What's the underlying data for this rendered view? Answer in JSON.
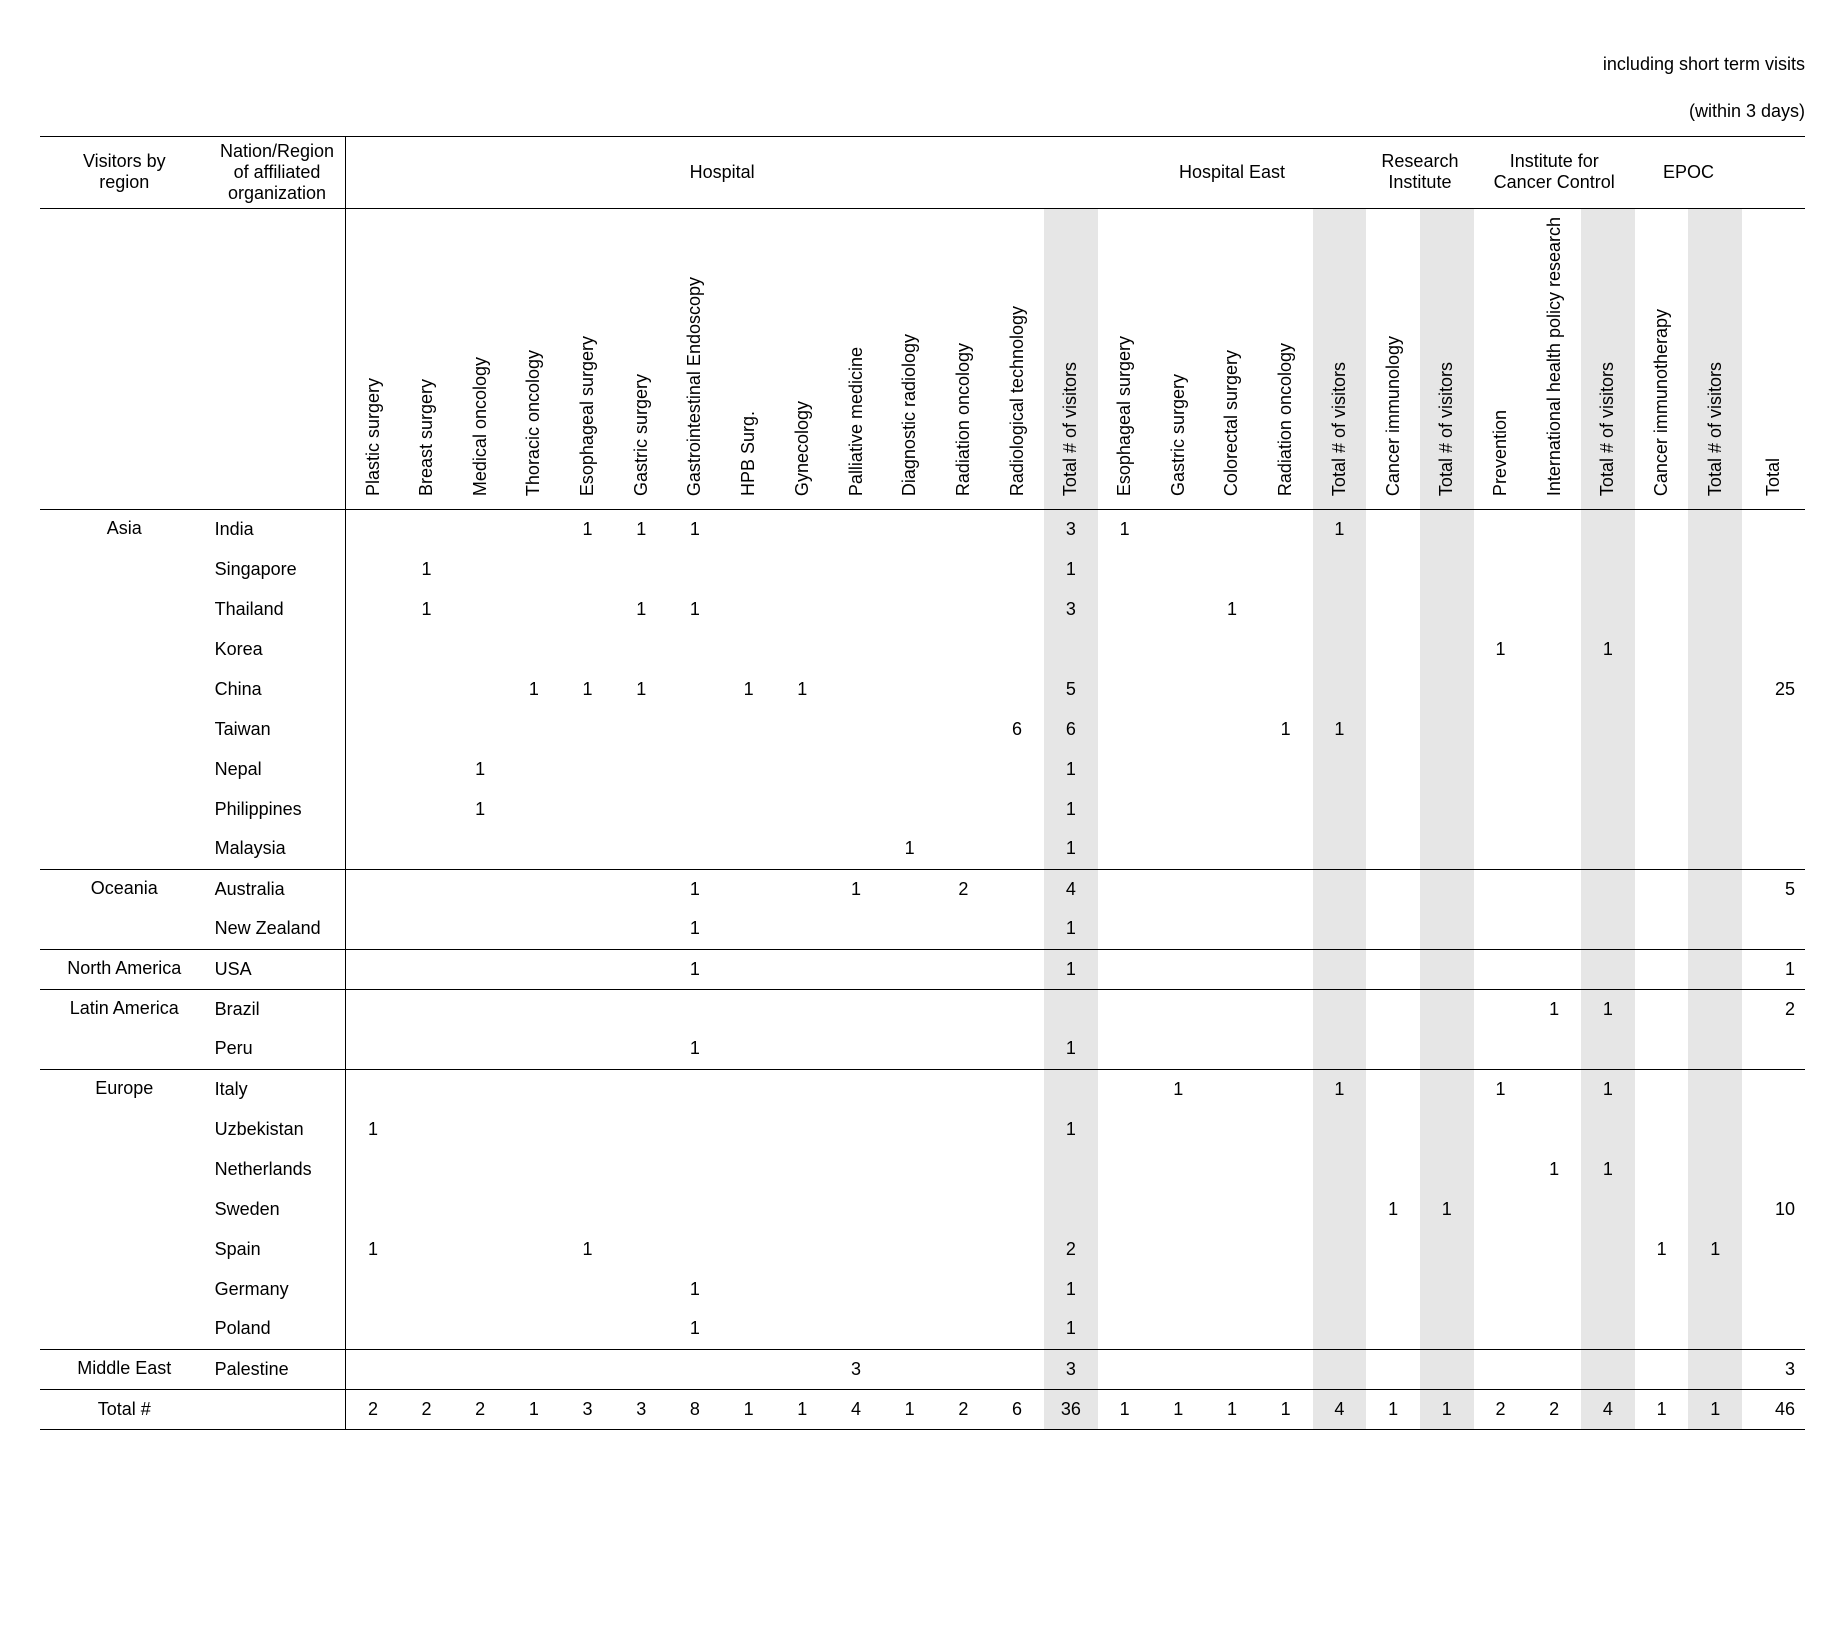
{
  "note_line1": "including short term visits",
  "note_line2": "(within 3 days)",
  "header": {
    "visitors_by_region": "Visitors by\nregion",
    "nation_region": "Nation/Region\nof affiliated\norganization",
    "hospital": "Hospital",
    "hospital_east": "Hospital East",
    "research_institute": "Research\nInstitute",
    "institute_cancer_control": "Institute for\nCancer Control",
    "epoc": "EPOC",
    "blank": ""
  },
  "columns": [
    "Plastic surgery",
    "Breast surgery",
    "Medical oncology",
    "Thoracic oncology",
    "Esophageal surgery",
    "Gastric surgery",
    "Gastrointestinal Endoscopy",
    "HPB Surg.",
    "Gynecology",
    "Palliative medicine",
    "Diagnostic radiology",
    "Radiation oncology",
    "Radiological technology",
    "Total # of visitors",
    "Esophageal surgery",
    "Gastric surgery",
    "Colorectal surgery",
    "Radiation oncology",
    "Total # of visitors",
    "Cancer immunology",
    "Total # of visitors",
    "Prevention",
    "International health policy research",
    "Total # of visitors",
    "Cancer immunotherapy",
    "Total # of visitors",
    "Total"
  ],
  "totals_label": "Total #",
  "regions": [
    {
      "name": "Asia",
      "rows": [
        {
          "country": "India",
          "v": [
            "",
            "",
            "",
            "",
            "1",
            "1",
            "1",
            "",
            "",
            "",
            "",
            "",
            "",
            "3",
            "1",
            "",
            "",
            "",
            "1",
            "",
            "",
            "",
            "",
            "",
            "",
            "",
            ""
          ]
        },
        {
          "country": "Singapore",
          "v": [
            "",
            "1",
            "",
            "",
            "",
            "",
            "",
            "",
            "",
            "",
            "",
            "",
            "",
            "1",
            "",
            "",
            "",
            "",
            "",
            "",
            "",
            "",
            "",
            "",
            "",
            "",
            ""
          ]
        },
        {
          "country": "Thailand",
          "v": [
            "",
            "1",
            "",
            "",
            "",
            "1",
            "1",
            "",
            "",
            "",
            "",
            "",
            "",
            "3",
            "",
            "",
            "1",
            "",
            "",
            "",
            "",
            "",
            "",
            "",
            "",
            "",
            ""
          ]
        },
        {
          "country": "Korea",
          "v": [
            "",
            "",
            "",
            "",
            "",
            "",
            "",
            "",
            "",
            "",
            "",
            "",
            "",
            "",
            "",
            "",
            "",
            "",
            "",
            "",
            "",
            "1",
            "",
            "1",
            "",
            "",
            ""
          ]
        },
        {
          "country": "China",
          "v": [
            "",
            "",
            "",
            "1",
            "1",
            "1",
            "",
            "1",
            "1",
            "",
            "",
            "",
            "",
            "5",
            "",
            "",
            "",
            "",
            "",
            "",
            "",
            "",
            "",
            "",
            "",
            "",
            "25"
          ]
        },
        {
          "country": "Taiwan",
          "v": [
            "",
            "",
            "",
            "",
            "",
            "",
            "",
            "",
            "",
            "",
            "",
            "",
            "6",
            "6",
            "",
            "",
            "",
            "1",
            "1",
            "",
            "",
            "",
            "",
            "",
            "",
            "",
            ""
          ]
        },
        {
          "country": "Nepal",
          "v": [
            "",
            "",
            "1",
            "",
            "",
            "",
            "",
            "",
            "",
            "",
            "",
            "",
            "",
            "1",
            "",
            "",
            "",
            "",
            "",
            "",
            "",
            "",
            "",
            "",
            "",
            "",
            ""
          ]
        },
        {
          "country": "Philippines",
          "v": [
            "",
            "",
            "1",
            "",
            "",
            "",
            "",
            "",
            "",
            "",
            "",
            "",
            "",
            "1",
            "",
            "",
            "",
            "",
            "",
            "",
            "",
            "",
            "",
            "",
            "",
            "",
            ""
          ]
        },
        {
          "country": "Malaysia",
          "v": [
            "",
            "",
            "",
            "",
            "",
            "",
            "",
            "",
            "",
            "",
            "1",
            "",
            "",
            "1",
            "",
            "",
            "",
            "",
            "",
            "",
            "",
            "",
            "",
            "",
            "",
            "",
            ""
          ]
        }
      ]
    },
    {
      "name": "Oceania",
      "rows": [
        {
          "country": "Australia",
          "v": [
            "",
            "",
            "",
            "",
            "",
            "",
            "1",
            "",
            "",
            "1",
            "",
            "2",
            "",
            "4",
            "",
            "",
            "",
            "",
            "",
            "",
            "",
            "",
            "",
            "",
            "",
            "",
            "5"
          ]
        },
        {
          "country": "New Zealand",
          "v": [
            "",
            "",
            "",
            "",
            "",
            "",
            "1",
            "",
            "",
            "",
            "",
            "",
            "",
            "1",
            "",
            "",
            "",
            "",
            "",
            "",
            "",
            "",
            "",
            "",
            "",
            "",
            ""
          ]
        }
      ]
    },
    {
      "name": "North America",
      "rows": [
        {
          "country": "USA",
          "v": [
            "",
            "",
            "",
            "",
            "",
            "",
            "1",
            "",
            "",
            "",
            "",
            "",
            "",
            "1",
            "",
            "",
            "",
            "",
            "",
            "",
            "",
            "",
            "",
            "",
            "",
            "",
            "1"
          ]
        }
      ]
    },
    {
      "name": "Latin America",
      "rows": [
        {
          "country": "Brazil",
          "v": [
            "",
            "",
            "",
            "",
            "",
            "",
            "",
            "",
            "",
            "",
            "",
            "",
            "",
            "",
            "",
            "",
            "",
            "",
            "",
            "",
            "",
            "",
            "1",
            "1",
            "",
            "",
            "2"
          ]
        },
        {
          "country": "Peru",
          "v": [
            "",
            "",
            "",
            "",
            "",
            "",
            "1",
            "",
            "",
            "",
            "",
            "",
            "",
            "1",
            "",
            "",
            "",
            "",
            "",
            "",
            "",
            "",
            "",
            "",
            "",
            "",
            ""
          ]
        }
      ]
    },
    {
      "name": "Europe",
      "rows": [
        {
          "country": "Italy",
          "v": [
            "",
            "",
            "",
            "",
            "",
            "",
            "",
            "",
            "",
            "",
            "",
            "",
            "",
            "",
            "",
            "1",
            "",
            "",
            "1",
            "",
            "",
            "1",
            "",
            "1",
            "",
            "",
            ""
          ]
        },
        {
          "country": "Uzbekistan",
          "v": [
            "1",
            "",
            "",
            "",
            "",
            "",
            "",
            "",
            "",
            "",
            "",
            "",
            "",
            "1",
            "",
            "",
            "",
            "",
            "",
            "",
            "",
            "",
            "",
            "",
            "",
            "",
            ""
          ]
        },
        {
          "country": "Netherlands",
          "v": [
            "",
            "",
            "",
            "",
            "",
            "",
            "",
            "",
            "",
            "",
            "",
            "",
            "",
            "",
            "",
            "",
            "",
            "",
            "",
            "",
            "",
            "",
            "1",
            "1",
            "",
            "",
            ""
          ]
        },
        {
          "country": "Sweden",
          "v": [
            "",
            "",
            "",
            "",
            "",
            "",
            "",
            "",
            "",
            "",
            "",
            "",
            "",
            "",
            "",
            "",
            "",
            "",
            "",
            "1",
            "1",
            "",
            "",
            "",
            "",
            "",
            "10"
          ]
        },
        {
          "country": "Spain",
          "v": [
            "1",
            "",
            "",
            "",
            "1",
            "",
            "",
            "",
            "",
            "",
            "",
            "",
            "",
            "2",
            "",
            "",
            "",
            "",
            "",
            "",
            "",
            "",
            "",
            "",
            "1",
            "1",
            ""
          ]
        },
        {
          "country": "Germany",
          "v": [
            "",
            "",
            "",
            "",
            "",
            "",
            "1",
            "",
            "",
            "",
            "",
            "",
            "",
            "1",
            "",
            "",
            "",
            "",
            "",
            "",
            "",
            "",
            "",
            "",
            "",
            "",
            ""
          ]
        },
        {
          "country": "Poland",
          "v": [
            "",
            "",
            "",
            "",
            "",
            "",
            "1",
            "",
            "",
            "",
            "",
            "",
            "",
            "1",
            "",
            "",
            "",
            "",
            "",
            "",
            "",
            "",
            "",
            "",
            "",
            "",
            ""
          ]
        }
      ]
    },
    {
      "name": "Middle East",
      "rows": [
        {
          "country": "Palestine",
          "v": [
            "",
            "",
            "",
            "",
            "",
            "",
            "",
            "",
            "",
            "3",
            "",
            "",
            "",
            "3",
            "",
            "",
            "",
            "",
            "",
            "",
            "",
            "",
            "",
            "",
            "",
            "",
            "3"
          ]
        }
      ]
    }
  ],
  "totals": [
    "2",
    "2",
    "2",
    "1",
    "3",
    "3",
    "8",
    "1",
    "1",
    "4",
    "1",
    "2",
    "6",
    "36",
    "1",
    "1",
    "1",
    "1",
    "4",
    "1",
    "1",
    "2",
    "2",
    "4",
    "1",
    "1",
    "46"
  ]
}
